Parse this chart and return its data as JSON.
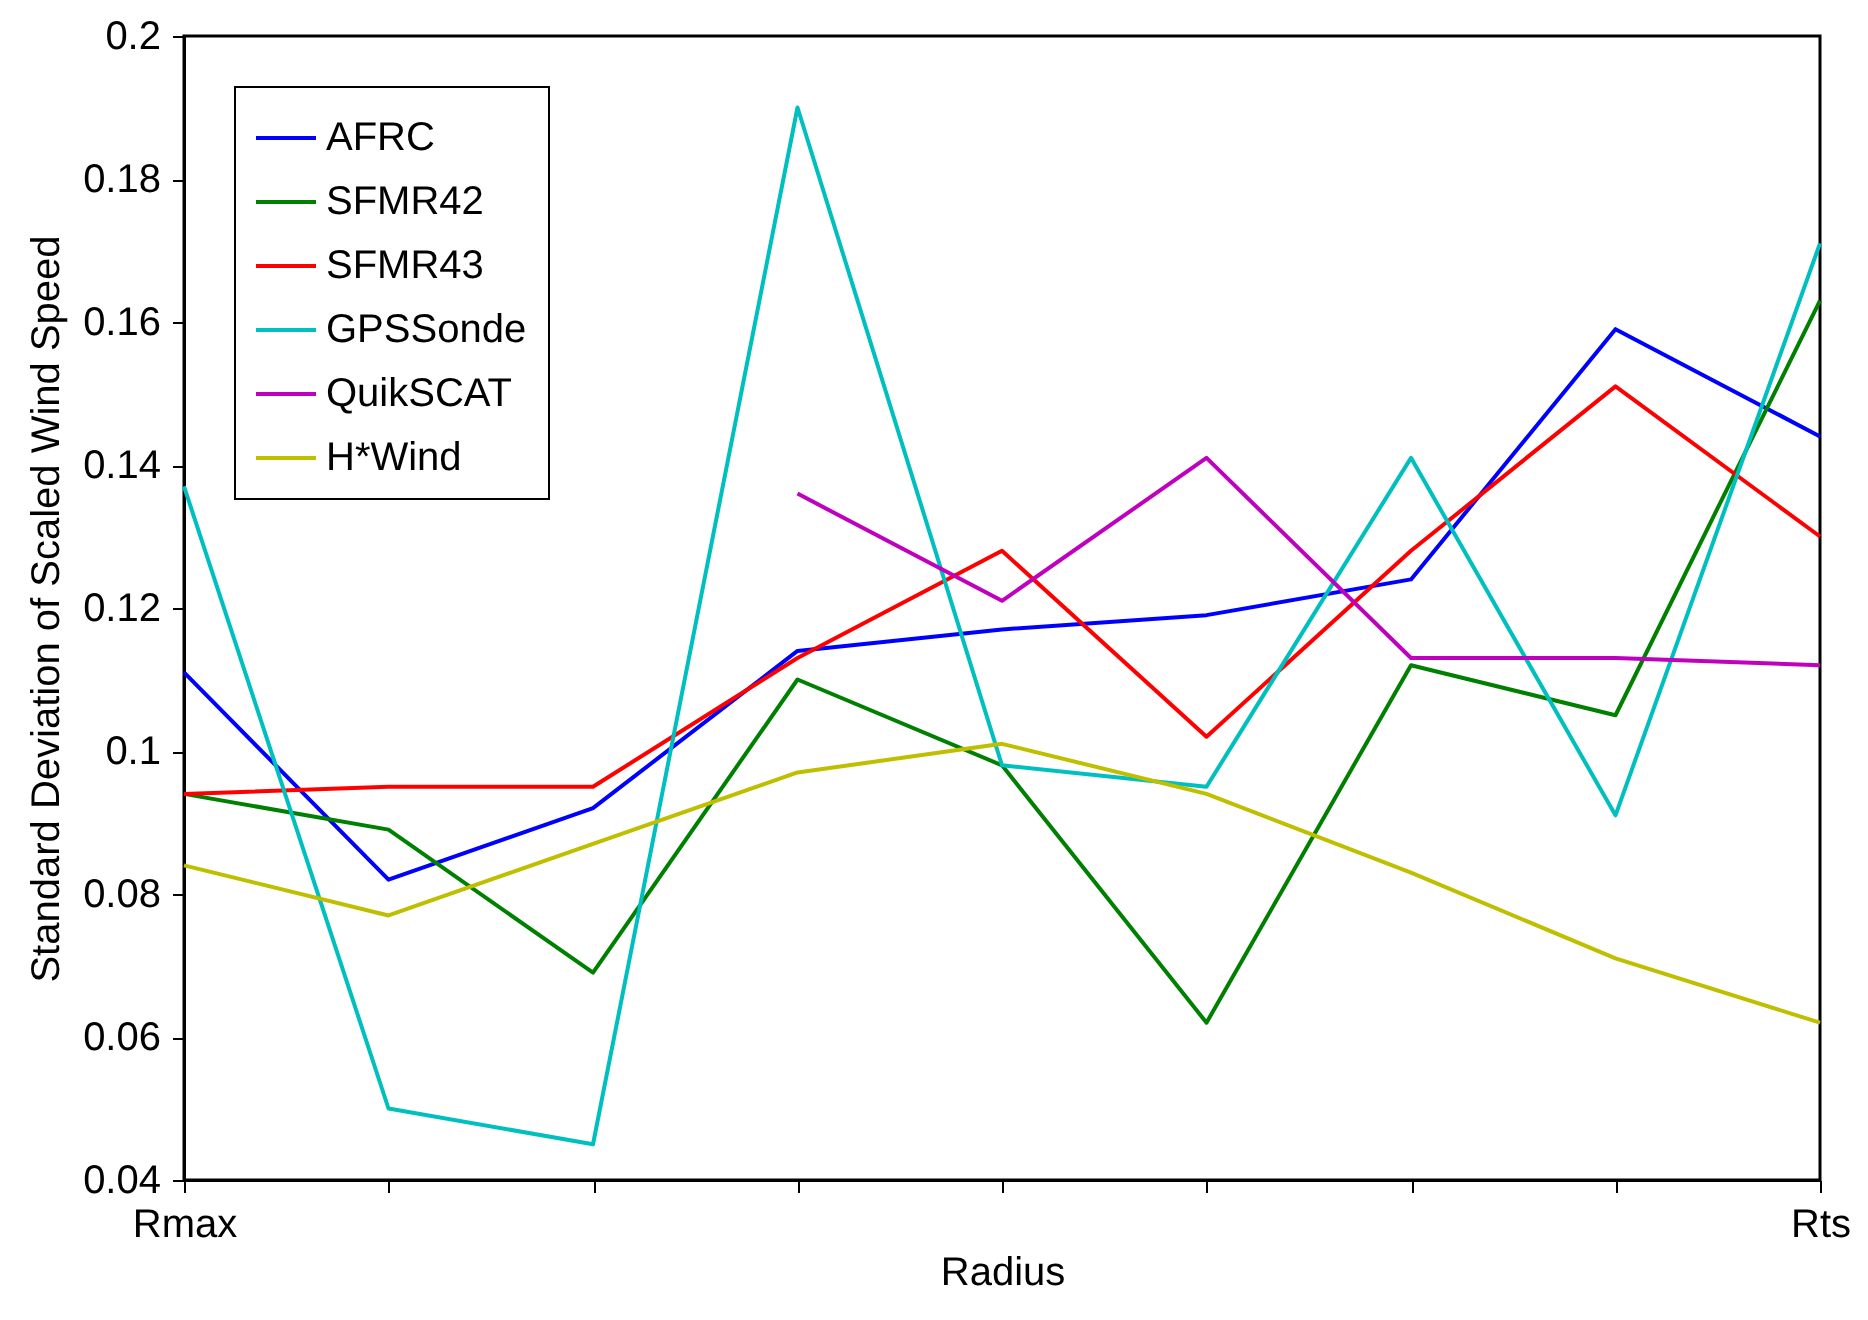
{
  "chart_data": {
    "type": "line",
    "xlabel": "Radius",
    "ylabel": "Standard Deviation of Scaled Wind Speed",
    "categories": [
      "Rmax",
      null,
      null,
      null,
      null,
      null,
      null,
      null,
      "Rts"
    ],
    "ylim": [
      0.04,
      0.2
    ],
    "yticks": [
      0.04,
      0.06,
      0.08,
      0.1,
      0.12,
      0.14,
      0.16,
      0.18,
      0.2
    ],
    "grid": false,
    "legend": "top left",
    "marker": "none",
    "line_style": "solid",
    "series": [
      {
        "name": "AFRC",
        "color": "#0000ff",
        "values": [
          0.111,
          0.082,
          0.092,
          0.114,
          0.117,
          0.119,
          0.124,
          0.159,
          0.144
        ]
      },
      {
        "name": "SFMR42",
        "color": "#008000",
        "values": [
          0.094,
          0.089,
          0.069,
          0.11,
          0.098,
          0.062,
          0.112,
          0.105,
          0.163
        ]
      },
      {
        "name": "SFMR43",
        "color": "#ff0000",
        "values": [
          0.094,
          0.095,
          0.095,
          0.113,
          0.128,
          0.102,
          0.128,
          0.151,
          0.13
        ]
      },
      {
        "name": "GPSSonde",
        "color": "#00bfbf",
        "values": [
          0.137,
          0.05,
          0.045,
          0.19,
          0.098,
          0.095,
          0.141,
          0.091,
          0.171
        ]
      },
      {
        "name": "QuikSCAT",
        "color": "#bf00bf",
        "values": [
          null,
          null,
          null,
          0.136,
          0.121,
          0.141,
          0.113,
          0.113,
          0.112
        ]
      },
      {
        "name": "H*Wind",
        "color": "#bfbf00",
        "values": [
          0.084,
          0.077,
          0.087,
          0.097,
          0.101,
          0.094,
          0.083,
          0.071,
          0.062
        ]
      }
    ]
  }
}
